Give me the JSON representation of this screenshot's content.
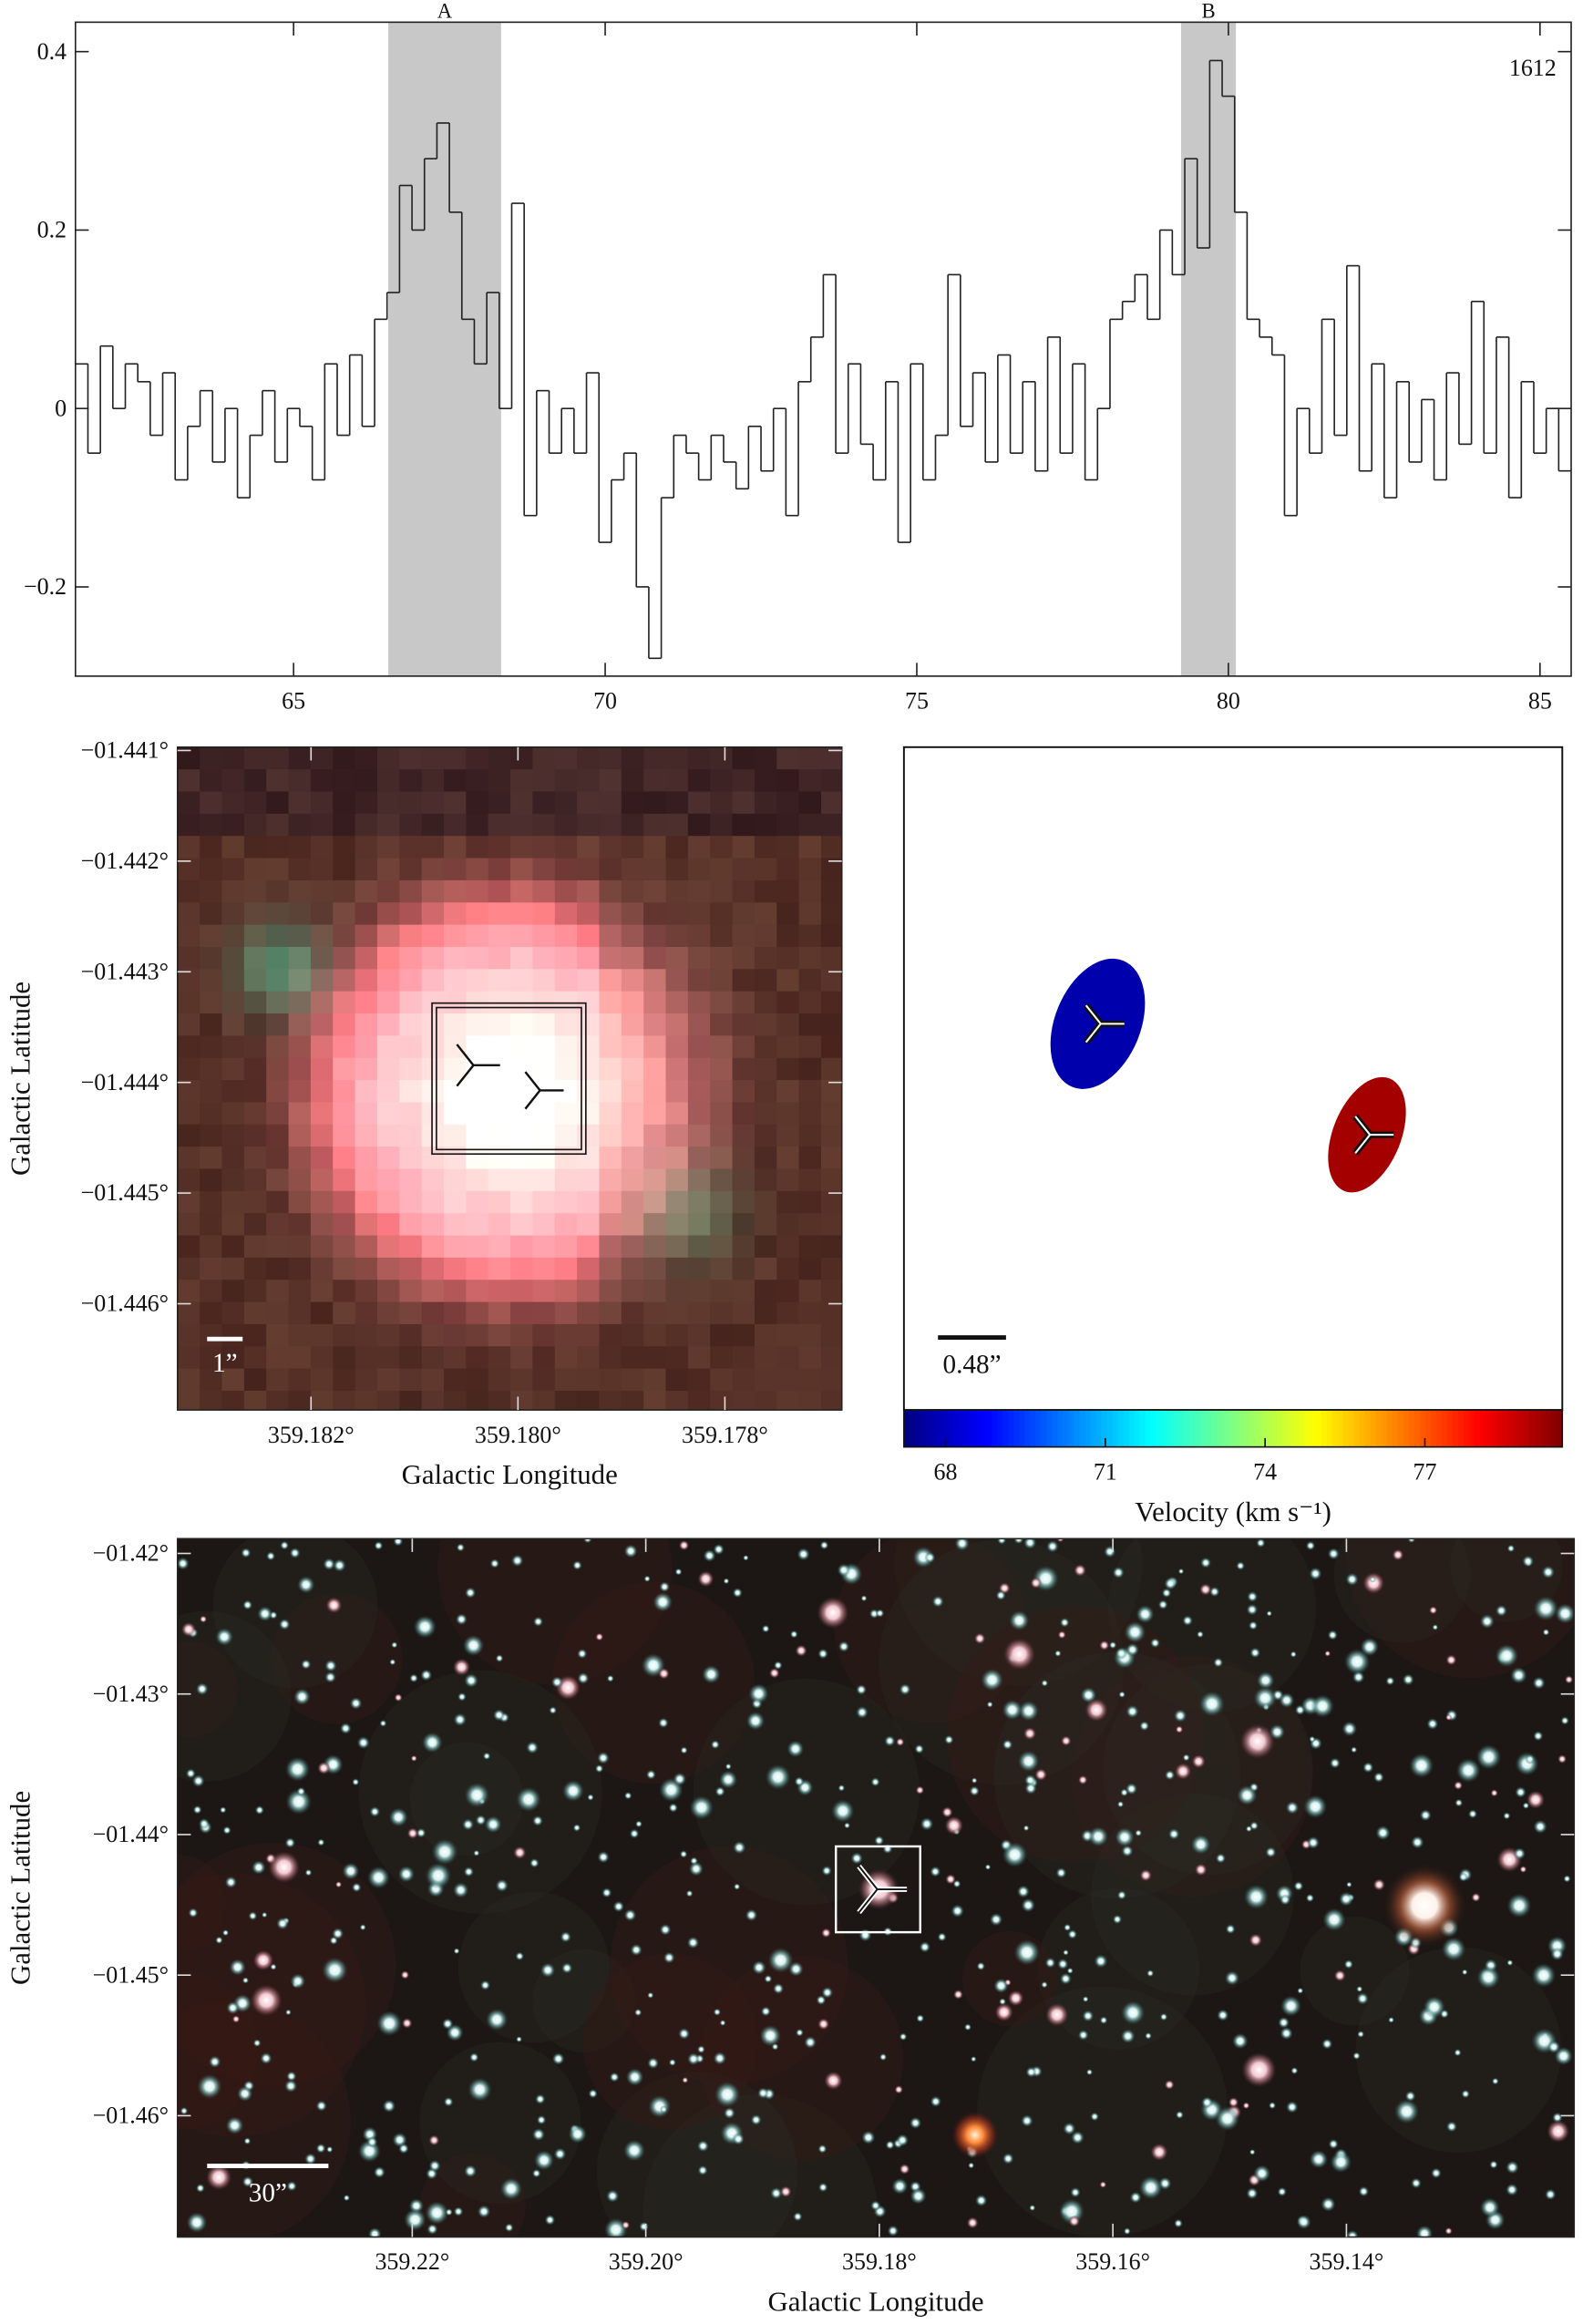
{
  "chart_data": [
    {
      "type": "line",
      "annotation": "1612",
      "shaded": [
        {
          "label": "A",
          "range": [
            66.52,
            68.33
          ]
        },
        {
          "label": "B",
          "range": [
            79.24,
            80.12
          ]
        }
      ],
      "x": [
        61.6,
        61.8,
        62.0,
        62.2,
        62.4,
        62.6,
        62.8,
        63.0,
        63.2,
        63.4,
        63.6,
        63.8,
        64.0,
        64.2,
        64.4,
        64.6,
        64.8,
        65.0,
        65.2,
        65.4,
        65.6,
        65.8,
        66.0,
        66.2,
        66.4,
        66.6,
        66.8,
        67.0,
        67.2,
        67.4,
        67.6,
        67.8,
        68.0,
        68.2,
        68.4,
        68.6,
        68.8,
        69.0,
        69.2,
        69.4,
        69.6,
        69.8,
        70.0,
        70.2,
        70.4,
        70.6,
        70.8,
        71.0,
        71.2,
        71.4,
        71.6,
        71.8,
        72.0,
        72.2,
        72.4,
        72.6,
        72.8,
        73.0,
        73.2,
        73.4,
        73.6,
        73.8,
        74.0,
        74.2,
        74.4,
        74.6,
        74.8,
        75.0,
        75.2,
        75.4,
        75.6,
        75.8,
        76.0,
        76.2,
        76.4,
        76.6,
        76.8,
        77.0,
        77.2,
        77.4,
        77.6,
        77.8,
        78.0,
        78.2,
        78.4,
        78.6,
        78.8,
        79.0,
        79.2,
        79.4,
        79.6,
        79.8,
        80.0,
        80.2,
        80.4,
        80.6,
        80.8,
        81.0,
        81.2,
        81.4,
        81.6,
        81.8,
        82.0,
        82.2,
        82.4,
        82.6,
        82.8,
        83.0,
        83.2,
        83.4,
        83.6,
        83.8,
        84.0,
        84.2,
        84.4,
        84.6,
        84.8,
        85.0,
        85.2,
        85.4
      ],
      "values": [
        0.05,
        -0.05,
        0.07,
        0.0,
        0.05,
        0.03,
        -0.03,
        0.04,
        -0.08,
        -0.02,
        0.02,
        -0.06,
        0.0,
        -0.1,
        -0.03,
        0.02,
        -0.06,
        0.0,
        -0.02,
        -0.08,
        0.05,
        -0.03,
        0.06,
        -0.02,
        0.1,
        0.13,
        0.25,
        0.2,
        0.28,
        0.32,
        0.22,
        0.1,
        0.05,
        0.13,
        0.0,
        0.23,
        -0.12,
        0.02,
        -0.05,
        0.0,
        -0.05,
        0.04,
        -0.15,
        -0.08,
        -0.05,
        -0.2,
        -0.28,
        -0.1,
        -0.03,
        -0.05,
        -0.08,
        -0.03,
        -0.06,
        -0.09,
        -0.02,
        -0.07,
        0.0,
        -0.12,
        0.03,
        0.08,
        0.15,
        -0.05,
        0.05,
        -0.04,
        -0.08,
        0.03,
        -0.15,
        0.05,
        -0.08,
        -0.03,
        0.15,
        -0.02,
        0.04,
        -0.06,
        0.06,
        -0.05,
        0.03,
        -0.07,
        0.08,
        -0.05,
        0.05,
        -0.08,
        0.0,
        0.1,
        0.12,
        0.15,
        0.1,
        0.2,
        0.15,
        0.28,
        0.18,
        0.39,
        0.35,
        0.22,
        0.1,
        0.08,
        0.06,
        -0.12,
        0.0,
        -0.05,
        0.1,
        -0.03,
        0.16,
        -0.07,
        0.05,
        -0.1,
        0.03,
        -0.06,
        0.01,
        -0.08,
        0.04,
        -0.04,
        0.12,
        -0.05,
        0.08,
        -0.1,
        0.03,
        -0.05,
        0.0,
        -0.07
      ],
      "color": "#222222",
      "xlim": [
        61.5,
        85.5
      ],
      "ylim": [
        -0.3,
        0.433
      ],
      "xticks": [
        65,
        70,
        75,
        80,
        85
      ],
      "yticks": [
        {
          "value": -0.2,
          "label": "−0.2"
        },
        0,
        0.2,
        0.4
      ]
    },
    {
      "type": "image",
      "xlabel": "Galactic Longitude",
      "ylabel": "Galactic Latitude",
      "scale_bar": "1”",
      "xlim": [
        359.18329,
        359.17687
      ],
      "ylim": [
        -1.44696,
        -1.44097
      ],
      "xticks": [
        {
          "value": 359.182,
          "label": "359.182°"
        },
        {
          "value": 359.18,
          "label": "359.180°"
        },
        {
          "value": 359.178,
          "label": "359.178°"
        }
      ],
      "yticks": [
        {
          "value": -1.441,
          "label": "−01.441°"
        },
        {
          "value": -1.442,
          "label": "−01.442°"
        },
        {
          "value": -1.443,
          "label": "−01.443°"
        },
        {
          "value": -1.444,
          "label": "−01.444°"
        },
        {
          "value": -1.445,
          "label": "−01.445°"
        },
        {
          "value": -1.446,
          "label": "−01.446°"
        }
      ]
    },
    {
      "type": "velocity-map",
      "scale_bar": "0.48”",
      "values": [
        67.6,
        79.3
      ],
      "colorbar_label": "Velocity (km s⁻¹)",
      "clim": [
        67.22,
        79.58
      ],
      "cticks": [
        68,
        71,
        74,
        77
      ]
    },
    {
      "type": "image",
      "xlabel": "Galactic Longitude",
      "ylabel": "Galactic Latitude",
      "scale_bar": "30”",
      "xlim": [
        359.2401,
        359.1205
      ],
      "ylim": [
        -1.46863,
        -1.41895
      ],
      "xticks": [
        {
          "value": 359.22,
          "label": "359.22°"
        },
        {
          "value": 359.2,
          "label": "359.20°"
        },
        {
          "value": 359.18,
          "label": "359.18°"
        },
        {
          "value": 359.16,
          "label": "359.16°"
        },
        {
          "value": 359.14,
          "label": "359.14°"
        }
      ],
      "yticks": [
        {
          "value": -1.42,
          "label": "−01.42°"
        },
        {
          "value": -1.43,
          "label": "−01.43°"
        },
        {
          "value": -1.44,
          "label": "−01.44°"
        },
        {
          "value": -1.45,
          "label": "−01.45°"
        },
        {
          "value": -1.46,
          "label": "−01.46°"
        }
      ]
    }
  ]
}
